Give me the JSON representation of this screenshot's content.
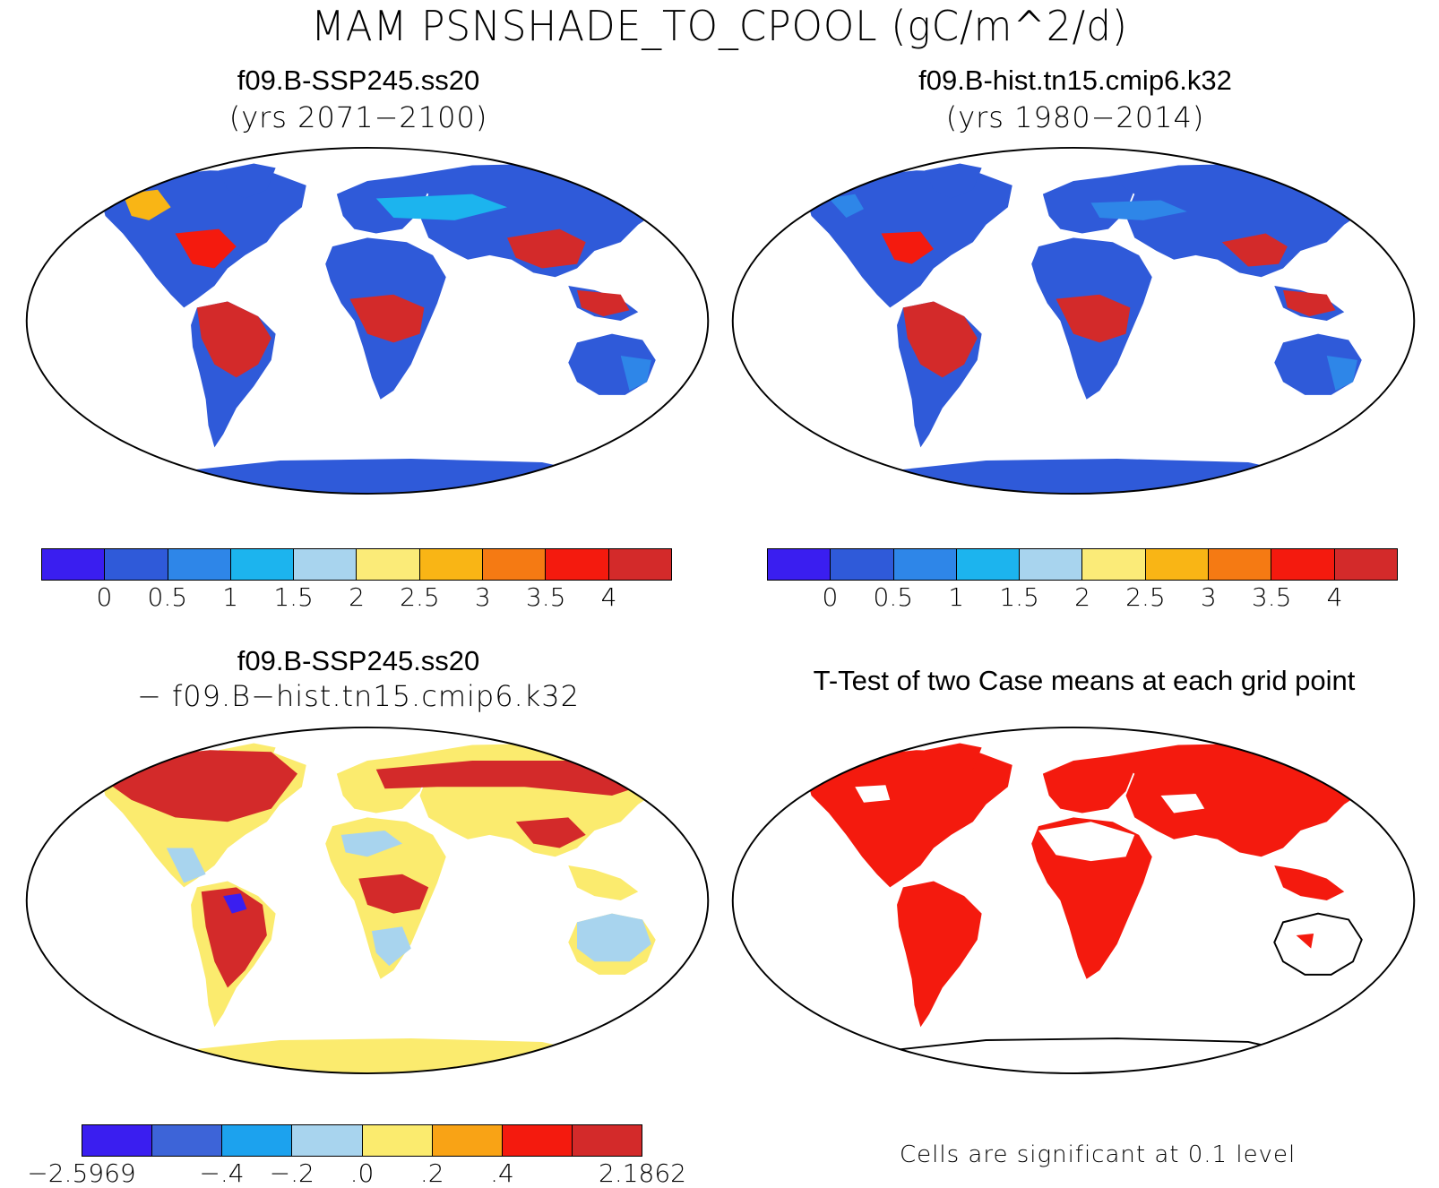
{
  "title": "MAM PSNSHADE_TO_CPOOL (gC/m^2/d)",
  "panels": [
    {
      "title": "f09.B-SSP245.ss20",
      "subtitle": "(yrs 2071−2100)"
    },
    {
      "title": "f09.B-hist.tn15.cmip6.k32",
      "subtitle": "(yrs 1980−2014)"
    },
    {
      "title": "f09.B-SSP245.ss20",
      "subtitle": "− f09.B−hist.tn15.cmip6.k32"
    },
    {
      "title": "T-Test of two Case means at each grid point",
      "subtitle": ""
    }
  ],
  "colorbar_abs": {
    "labels": [
      "0",
      "0.5",
      "1",
      "1.5",
      "2",
      "2.5",
      "3",
      "3.5",
      "4"
    ],
    "colors": [
      "#3a1ef0",
      "#2f5ad9",
      "#2e86e8",
      "#1cb4ee",
      "#a8d4ee",
      "#fbeb78",
      "#f9b515",
      "#f57a13",
      "#f41a0e",
      "#d32a2a"
    ]
  },
  "colorbar_diff": {
    "labels": [
      "−2.5969",
      "−.4",
      "−.2",
      ".0",
      ".2",
      ".4",
      "2.1862"
    ],
    "colors": [
      "#3a1ef0",
      "#3d64d8",
      "#1ca2ee",
      "#a8d4ee",
      "#fbeb6e",
      "#f9a315",
      "#f41a0e",
      "#d32a2a"
    ]
  },
  "significance_note": "Cells are significant at 0.1 level",
  "colors": {
    "sig_fill": "#f41a0e",
    "land_blue": "#2f5ad9",
    "land_red": "#d32a2a",
    "land_yellow": "#fbeb78"
  }
}
